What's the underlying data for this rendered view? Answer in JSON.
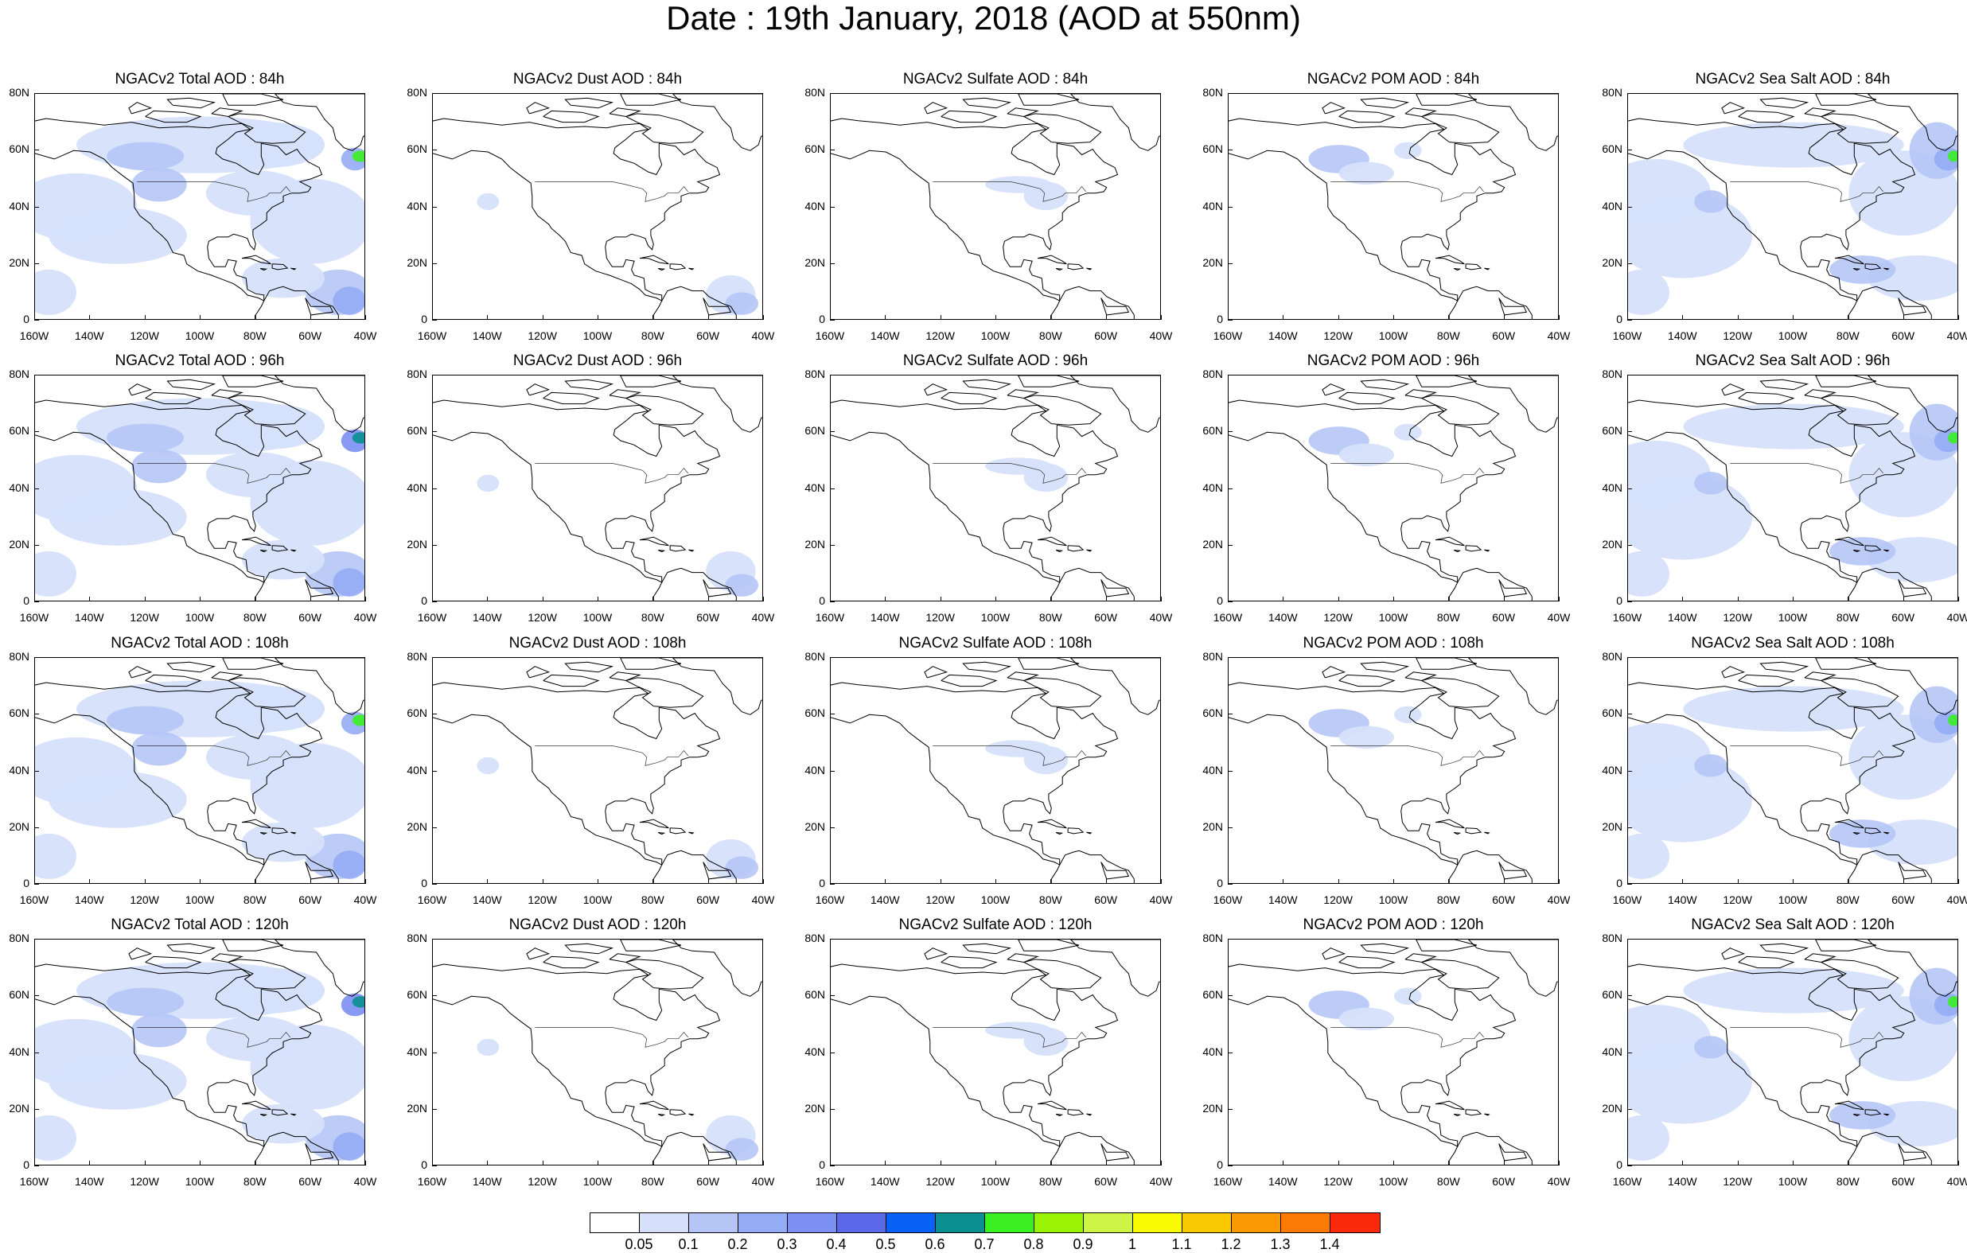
{
  "title": "Date : 19th January, 2018 (AOD at 550nm)",
  "panels": [
    [
      {
        "title": "NGACv2 Total AOD : 84h",
        "kind": "total"
      },
      {
        "title": "NGACv2 Dust AOD : 84h",
        "kind": "dust"
      },
      {
        "title": "NGACv2 Sulfate AOD : 84h",
        "kind": "sulfate"
      },
      {
        "title": "NGACv2 POM AOD : 84h",
        "kind": "pom"
      },
      {
        "title": "NGACv2 Sea Salt AOD : 84h",
        "kind": "seasalt"
      }
    ],
    [
      {
        "title": "NGACv2 Total AOD : 96h",
        "kind": "total"
      },
      {
        "title": "NGACv2 Dust AOD : 96h",
        "kind": "dust"
      },
      {
        "title": "NGACv2 Sulfate AOD : 96h",
        "kind": "sulfate"
      },
      {
        "title": "NGACv2 POM AOD : 96h",
        "kind": "pom"
      },
      {
        "title": "NGACv2 Sea Salt AOD : 96h",
        "kind": "seasalt"
      }
    ],
    [
      {
        "title": "NGACv2 Total AOD : 108h",
        "kind": "total"
      },
      {
        "title": "NGACv2 Dust AOD : 108h",
        "kind": "dust"
      },
      {
        "title": "NGACv2 Sulfate AOD : 108h",
        "kind": "sulfate"
      },
      {
        "title": "NGACv2 POM AOD : 108h",
        "kind": "pom"
      },
      {
        "title": "NGACv2 Sea Salt AOD : 108h",
        "kind": "seasalt"
      }
    ],
    [
      {
        "title": "NGACv2 Total AOD : 120h",
        "kind": "total"
      },
      {
        "title": "NGACv2 Dust AOD : 120h",
        "kind": "dust"
      },
      {
        "title": "NGACv2 Sulfate AOD : 120h",
        "kind": "sulfate"
      },
      {
        "title": "NGACv2 POM AOD : 120h",
        "kind": "pom"
      },
      {
        "title": "NGACv2 Sea Salt  AOD : 120h",
        "kind": "seasalt"
      }
    ]
  ],
  "axes": {
    "lon_labels": [
      "160W",
      "140W",
      "120W",
      "100W",
      "80W",
      "60W",
      "40W"
    ],
    "lat_labels": [
      "0",
      "20N",
      "40N",
      "60N",
      "80N"
    ]
  },
  "colorbar": {
    "labels": [
      "0.05",
      "0.1",
      "0.2",
      "0.3",
      "0.4",
      "0.5",
      "0.6",
      "0.7",
      "0.8",
      "0.9",
      "1",
      "1.1",
      "1.2",
      "1.3",
      "1.4"
    ],
    "colors": [
      "#ffffff",
      "#d6e0fb",
      "#b5c6f6",
      "#94acf5",
      "#7c8ff3",
      "#5b68e8",
      "#0a61f6",
      "#0a9090",
      "#3af022",
      "#9af205",
      "#cdf548",
      "#fbfb04",
      "#fbc904",
      "#fb9a04",
      "#fb7a04",
      "#fb2a0c"
    ]
  }
}
